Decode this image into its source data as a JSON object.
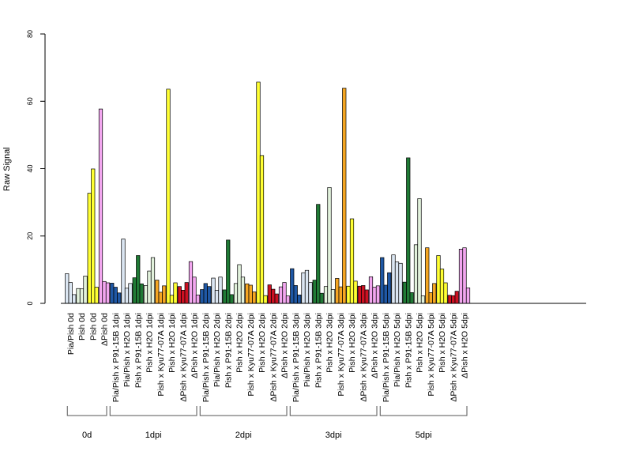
{
  "chart_data": {
    "type": "bar",
    "ylabel": "Raw Signal",
    "xlabel": "",
    "title": "",
    "ylim": [
      0,
      80
    ],
    "yticks": [
      0,
      20,
      40,
      60,
      80
    ],
    "bars_per_category": 3,
    "categories": [
      {
        "label": "Pia/Pish 0d",
        "group": "0d",
        "color": "#dbe6f2",
        "values": [
          8.8,
          6.2,
          2.6
        ]
      },
      {
        "label": "Pish 0d",
        "group": "0d",
        "color": "#e2f2dc",
        "values": [
          4.4,
          4.3,
          8.1
        ]
      },
      {
        "label": "Pish 0d",
        "group": "0d",
        "color": "#ffff33",
        "values": [
          32.7,
          39.9,
          4.8
        ]
      },
      {
        "label": "ΔPish 0d",
        "group": "0d",
        "color": "#f2a6ef",
        "values": [
          57.7,
          6.5,
          6.1
        ]
      },
      {
        "label": "Pia/Pish x P91-15B 1dpi",
        "group": "1dpi",
        "color": "#1f58a5",
        "values": [
          6.0,
          4.8,
          3.1
        ]
      },
      {
        "label": "Pia/Pish x H2O 1dpi",
        "group": "1dpi",
        "color": "#dbe6f2",
        "values": [
          19.1,
          4.5,
          5.9
        ]
      },
      {
        "label": "Pish x P91-15B 1dpi",
        "group": "1dpi",
        "color": "#1f7a35",
        "values": [
          7.6,
          14.2,
          5.8
        ]
      },
      {
        "label": "Pish x H2O 1dpi",
        "group": "1dpi",
        "color": "#e2f2dc",
        "values": [
          5.3,
          9.6,
          13.6
        ]
      },
      {
        "label": "Pish x Kyu77-07A 1dpi",
        "group": "1dpi",
        "color": "#f5a623",
        "values": [
          6.9,
          3.3,
          5.2
        ]
      },
      {
        "label": "Pish x H2O 1dpi",
        "group": "1dpi",
        "color": "#ffff33",
        "values": [
          63.6,
          2.4,
          6.1
        ]
      },
      {
        "label": "ΔPish x Kyu77-07A 1dpi",
        "group": "1dpi",
        "color": "#cc1122",
        "values": [
          5.0,
          3.9,
          6.2
        ]
      },
      {
        "label": "ΔPish x H2O 1dpi",
        "group": "1dpi",
        "color": "#f2a6ef",
        "values": [
          12.4,
          7.8,
          2.5
        ]
      },
      {
        "label": "Pia/Pish x P91-15B 2dpi",
        "group": "2dpi",
        "color": "#1f58a5",
        "values": [
          4.1,
          5.9,
          5.0
        ]
      },
      {
        "label": "Pia/Pish x H2O 2dpi",
        "group": "2dpi",
        "color": "#dbe6f2",
        "values": [
          7.5,
          3.9,
          7.8
        ]
      },
      {
        "label": "Pish x P91-15B 2dpi",
        "group": "2dpi",
        "color": "#1f7a35",
        "values": [
          4.0,
          18.8,
          2.6
        ]
      },
      {
        "label": "Pish x H2O 2dpi",
        "group": "2dpi",
        "color": "#e2f2dc",
        "values": [
          5.9,
          11.5,
          7.8
        ]
      },
      {
        "label": "Pish x Kyu77-07A 2dpi",
        "group": "2dpi",
        "color": "#f5a623",
        "values": [
          5.8,
          5.4,
          3.4
        ]
      },
      {
        "label": "Pish x H2O 2dpi",
        "group": "2dpi",
        "color": "#ffff33",
        "values": [
          65.7,
          43.9,
          2.3
        ]
      },
      {
        "label": "ΔPish x Kyu77-07A 2dpi",
        "group": "2dpi",
        "color": "#cc1122",
        "values": [
          5.5,
          4.2,
          2.8
        ]
      },
      {
        "label": "ΔPish x H2O 2dpi",
        "group": "2dpi",
        "color": "#f2a6ef",
        "values": [
          4.9,
          6.2,
          2.2
        ]
      },
      {
        "label": "Pia/Pish x P91-15B 3dpi",
        "group": "3dpi",
        "color": "#1f58a5",
        "values": [
          10.3,
          5.3,
          2.5
        ]
      },
      {
        "label": "Pia/Pish x H2O 3dpi",
        "group": "3dpi",
        "color": "#dbe6f2",
        "values": [
          9.1,
          9.8,
          6.2
        ]
      },
      {
        "label": "Pish x P91-15B 3dpi",
        "group": "3dpi",
        "color": "#1f7a35",
        "values": [
          6.9,
          29.4,
          3.0
        ]
      },
      {
        "label": "Pish x H2O 3dpi",
        "group": "3dpi",
        "color": "#e2f2dc",
        "values": [
          5.0,
          34.4,
          4.1
        ]
      },
      {
        "label": "Pish x Kyu77-07A 3dpi",
        "group": "3dpi",
        "color": "#f5a623",
        "values": [
          7.4,
          4.9,
          63.9
        ]
      },
      {
        "label": "Pish x H2O 3dpi",
        "group": "3dpi",
        "color": "#ffff33",
        "values": [
          5.1,
          25.1,
          6.6
        ]
      },
      {
        "label": "ΔPish x Kyu77-07A 3dpi",
        "group": "3dpi",
        "color": "#cc1122",
        "values": [
          5.1,
          5.3,
          4.0
        ]
      },
      {
        "label": "ΔPish x H2O 3dpi",
        "group": "3dpi",
        "color": "#f2a6ef",
        "values": [
          7.9,
          4.8,
          5.2
        ]
      },
      {
        "label": "Pia/Pish x P91-15B 5dpi",
        "group": "5dpi",
        "color": "#1f58a5",
        "values": [
          13.6,
          5.4,
          9.1
        ]
      },
      {
        "label": "Pia/Pish x H2O 5dpi",
        "group": "5dpi",
        "color": "#dbe6f2",
        "values": [
          14.4,
          12.3,
          11.9
        ]
      },
      {
        "label": "Pish x P91-15B 5dpi",
        "group": "5dpi",
        "color": "#1f7a35",
        "values": [
          6.3,
          43.2,
          3.2
        ]
      },
      {
        "label": "Pish x H2O 5dpi",
        "group": "5dpi",
        "color": "#e2f2dc",
        "values": [
          17.4,
          31.1,
          2.2
        ]
      },
      {
        "label": "Pish x Kyu77-07A 5dpi",
        "group": "5dpi",
        "color": "#f5a623",
        "values": [
          16.5,
          3.2,
          5.9
        ]
      },
      {
        "label": "Pish x H2O 5dpi",
        "group": "5dpi",
        "color": "#ffff33",
        "values": [
          14.2,
          10.2,
          6.1
        ]
      },
      {
        "label": "ΔPish x Kyu77-07A 5dpi",
        "group": "5dpi",
        "color": "#cc1122",
        "values": [
          2.4,
          2.3,
          3.6
        ]
      },
      {
        "label": "ΔPish x H2O 5dpi",
        "group": "5dpi",
        "color": "#f2a6ef",
        "values": [
          16.1,
          16.5,
          4.6
        ]
      }
    ],
    "groups": [
      {
        "label": "0d",
        "first": 0,
        "last": 3
      },
      {
        "label": "1dpi",
        "first": 4,
        "last": 11
      },
      {
        "label": "2dpi",
        "first": 12,
        "last": 19
      },
      {
        "label": "3dpi",
        "first": 20,
        "last": 27
      },
      {
        "label": "5dpi",
        "first": 28,
        "last": 35
      }
    ],
    "grid": false,
    "legend": "none"
  }
}
